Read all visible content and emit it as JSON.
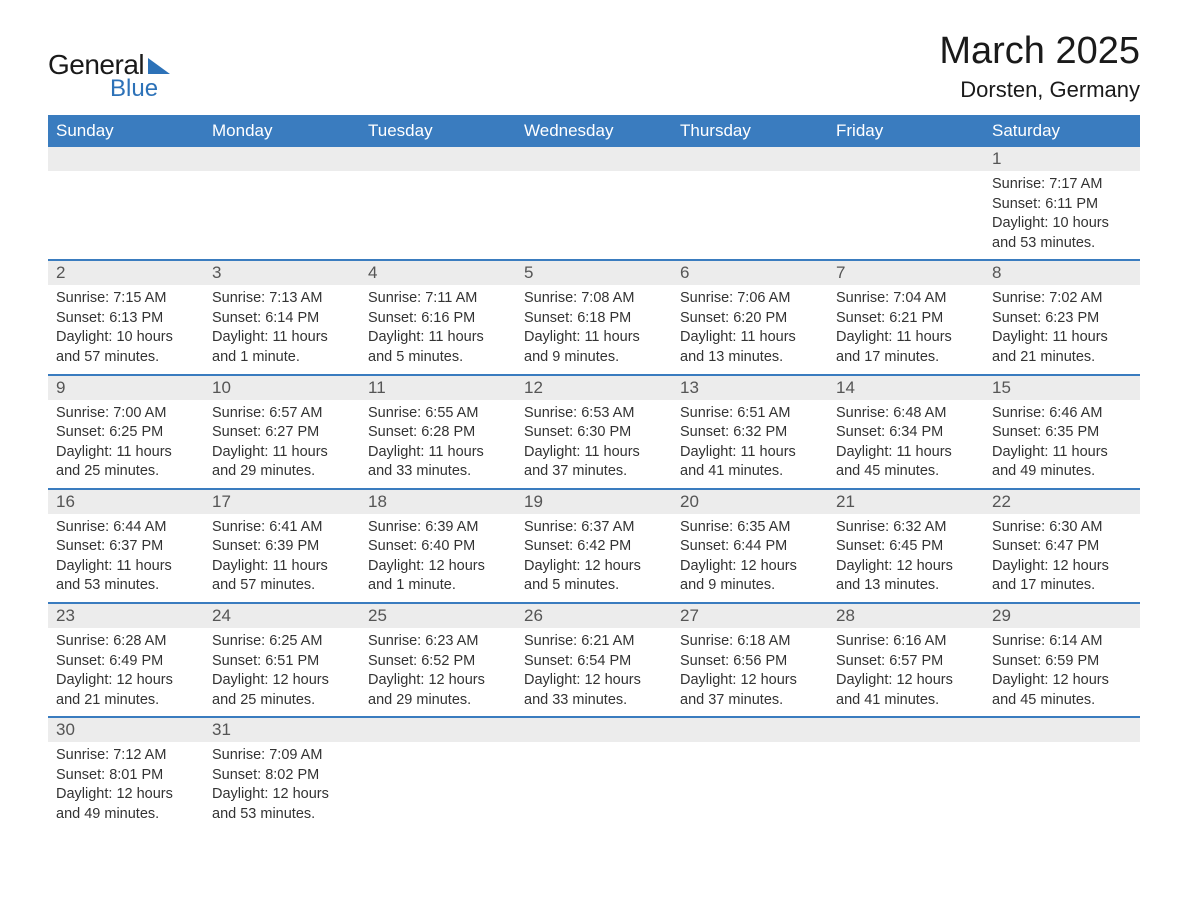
{
  "logo": {
    "text1": "General",
    "text2": "Blue",
    "accent_color": "#2d72b8"
  },
  "title": "March 2025",
  "location": "Dorsten, Germany",
  "colors": {
    "header_bg": "#3a7cbf",
    "header_text": "#ffffff",
    "strip_bg": "#ececec",
    "border": "#3a7cbf",
    "text": "#333333",
    "daynum": "#555555"
  },
  "type": "table",
  "day_names": [
    "Sunday",
    "Monday",
    "Tuesday",
    "Wednesday",
    "Thursday",
    "Friday",
    "Saturday"
  ],
  "weeks": [
    [
      {
        "n": "",
        "sunrise": "",
        "sunset": "",
        "daylight": ""
      },
      {
        "n": "",
        "sunrise": "",
        "sunset": "",
        "daylight": ""
      },
      {
        "n": "",
        "sunrise": "",
        "sunset": "",
        "daylight": ""
      },
      {
        "n": "",
        "sunrise": "",
        "sunset": "",
        "daylight": ""
      },
      {
        "n": "",
        "sunrise": "",
        "sunset": "",
        "daylight": ""
      },
      {
        "n": "",
        "sunrise": "",
        "sunset": "",
        "daylight": ""
      },
      {
        "n": "1",
        "sunrise": "Sunrise: 7:17 AM",
        "sunset": "Sunset: 6:11 PM",
        "daylight": "Daylight: 10 hours and 53 minutes."
      }
    ],
    [
      {
        "n": "2",
        "sunrise": "Sunrise: 7:15 AM",
        "sunset": "Sunset: 6:13 PM",
        "daylight": "Daylight: 10 hours and 57 minutes."
      },
      {
        "n": "3",
        "sunrise": "Sunrise: 7:13 AM",
        "sunset": "Sunset: 6:14 PM",
        "daylight": "Daylight: 11 hours and 1 minute."
      },
      {
        "n": "4",
        "sunrise": "Sunrise: 7:11 AM",
        "sunset": "Sunset: 6:16 PM",
        "daylight": "Daylight: 11 hours and 5 minutes."
      },
      {
        "n": "5",
        "sunrise": "Sunrise: 7:08 AM",
        "sunset": "Sunset: 6:18 PM",
        "daylight": "Daylight: 11 hours and 9 minutes."
      },
      {
        "n": "6",
        "sunrise": "Sunrise: 7:06 AM",
        "sunset": "Sunset: 6:20 PM",
        "daylight": "Daylight: 11 hours and 13 minutes."
      },
      {
        "n": "7",
        "sunrise": "Sunrise: 7:04 AM",
        "sunset": "Sunset: 6:21 PM",
        "daylight": "Daylight: 11 hours and 17 minutes."
      },
      {
        "n": "8",
        "sunrise": "Sunrise: 7:02 AM",
        "sunset": "Sunset: 6:23 PM",
        "daylight": "Daylight: 11 hours and 21 minutes."
      }
    ],
    [
      {
        "n": "9",
        "sunrise": "Sunrise: 7:00 AM",
        "sunset": "Sunset: 6:25 PM",
        "daylight": "Daylight: 11 hours and 25 minutes."
      },
      {
        "n": "10",
        "sunrise": "Sunrise: 6:57 AM",
        "sunset": "Sunset: 6:27 PM",
        "daylight": "Daylight: 11 hours and 29 minutes."
      },
      {
        "n": "11",
        "sunrise": "Sunrise: 6:55 AM",
        "sunset": "Sunset: 6:28 PM",
        "daylight": "Daylight: 11 hours and 33 minutes."
      },
      {
        "n": "12",
        "sunrise": "Sunrise: 6:53 AM",
        "sunset": "Sunset: 6:30 PM",
        "daylight": "Daylight: 11 hours and 37 minutes."
      },
      {
        "n": "13",
        "sunrise": "Sunrise: 6:51 AM",
        "sunset": "Sunset: 6:32 PM",
        "daylight": "Daylight: 11 hours and 41 minutes."
      },
      {
        "n": "14",
        "sunrise": "Sunrise: 6:48 AM",
        "sunset": "Sunset: 6:34 PM",
        "daylight": "Daylight: 11 hours and 45 minutes."
      },
      {
        "n": "15",
        "sunrise": "Sunrise: 6:46 AM",
        "sunset": "Sunset: 6:35 PM",
        "daylight": "Daylight: 11 hours and 49 minutes."
      }
    ],
    [
      {
        "n": "16",
        "sunrise": "Sunrise: 6:44 AM",
        "sunset": "Sunset: 6:37 PM",
        "daylight": "Daylight: 11 hours and 53 minutes."
      },
      {
        "n": "17",
        "sunrise": "Sunrise: 6:41 AM",
        "sunset": "Sunset: 6:39 PM",
        "daylight": "Daylight: 11 hours and 57 minutes."
      },
      {
        "n": "18",
        "sunrise": "Sunrise: 6:39 AM",
        "sunset": "Sunset: 6:40 PM",
        "daylight": "Daylight: 12 hours and 1 minute."
      },
      {
        "n": "19",
        "sunrise": "Sunrise: 6:37 AM",
        "sunset": "Sunset: 6:42 PM",
        "daylight": "Daylight: 12 hours and 5 minutes."
      },
      {
        "n": "20",
        "sunrise": "Sunrise: 6:35 AM",
        "sunset": "Sunset: 6:44 PM",
        "daylight": "Daylight: 12 hours and 9 minutes."
      },
      {
        "n": "21",
        "sunrise": "Sunrise: 6:32 AM",
        "sunset": "Sunset: 6:45 PM",
        "daylight": "Daylight: 12 hours and 13 minutes."
      },
      {
        "n": "22",
        "sunrise": "Sunrise: 6:30 AM",
        "sunset": "Sunset: 6:47 PM",
        "daylight": "Daylight: 12 hours and 17 minutes."
      }
    ],
    [
      {
        "n": "23",
        "sunrise": "Sunrise: 6:28 AM",
        "sunset": "Sunset: 6:49 PM",
        "daylight": "Daylight: 12 hours and 21 minutes."
      },
      {
        "n": "24",
        "sunrise": "Sunrise: 6:25 AM",
        "sunset": "Sunset: 6:51 PM",
        "daylight": "Daylight: 12 hours and 25 minutes."
      },
      {
        "n": "25",
        "sunrise": "Sunrise: 6:23 AM",
        "sunset": "Sunset: 6:52 PM",
        "daylight": "Daylight: 12 hours and 29 minutes."
      },
      {
        "n": "26",
        "sunrise": "Sunrise: 6:21 AM",
        "sunset": "Sunset: 6:54 PM",
        "daylight": "Daylight: 12 hours and 33 minutes."
      },
      {
        "n": "27",
        "sunrise": "Sunrise: 6:18 AM",
        "sunset": "Sunset: 6:56 PM",
        "daylight": "Daylight: 12 hours and 37 minutes."
      },
      {
        "n": "28",
        "sunrise": "Sunrise: 6:16 AM",
        "sunset": "Sunset: 6:57 PM",
        "daylight": "Daylight: 12 hours and 41 minutes."
      },
      {
        "n": "29",
        "sunrise": "Sunrise: 6:14 AM",
        "sunset": "Sunset: 6:59 PM",
        "daylight": "Daylight: 12 hours and 45 minutes."
      }
    ],
    [
      {
        "n": "30",
        "sunrise": "Sunrise: 7:12 AM",
        "sunset": "Sunset: 8:01 PM",
        "daylight": "Daylight: 12 hours and 49 minutes."
      },
      {
        "n": "31",
        "sunrise": "Sunrise: 7:09 AM",
        "sunset": "Sunset: 8:02 PM",
        "daylight": "Daylight: 12 hours and 53 minutes."
      },
      {
        "n": "",
        "sunrise": "",
        "sunset": "",
        "daylight": ""
      },
      {
        "n": "",
        "sunrise": "",
        "sunset": "",
        "daylight": ""
      },
      {
        "n": "",
        "sunrise": "",
        "sunset": "",
        "daylight": ""
      },
      {
        "n": "",
        "sunrise": "",
        "sunset": "",
        "daylight": ""
      },
      {
        "n": "",
        "sunrise": "",
        "sunset": "",
        "daylight": ""
      }
    ]
  ]
}
